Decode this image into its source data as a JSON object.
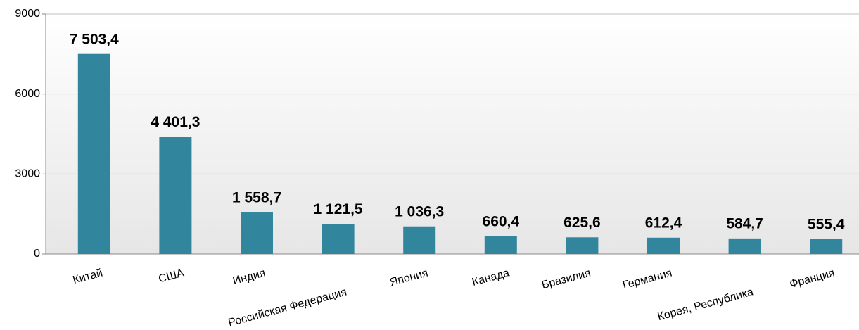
{
  "chart_data": {
    "type": "bar",
    "categories": [
      "Китай",
      "США",
      "Индия",
      "Российская Федерация",
      "Япония",
      "Канада",
      "Бразилия",
      "Германия",
      "Корея, Республика",
      "Франция"
    ],
    "values": [
      7503.4,
      4401.3,
      1558.7,
      1121.5,
      1036.3,
      660.4,
      625.6,
      612.4,
      584.7,
      555.4
    ],
    "value_labels": [
      "7 503,4",
      "4 401,3",
      "1 558,7",
      "1 121,5",
      "1 036,3",
      "660,4",
      "625,6",
      "612,4",
      "584,7",
      "555,4"
    ],
    "color": "#31859c",
    "ylim": [
      0,
      9000
    ],
    "yticks": [
      0,
      3000,
      6000,
      9000
    ],
    "grid": true
  }
}
